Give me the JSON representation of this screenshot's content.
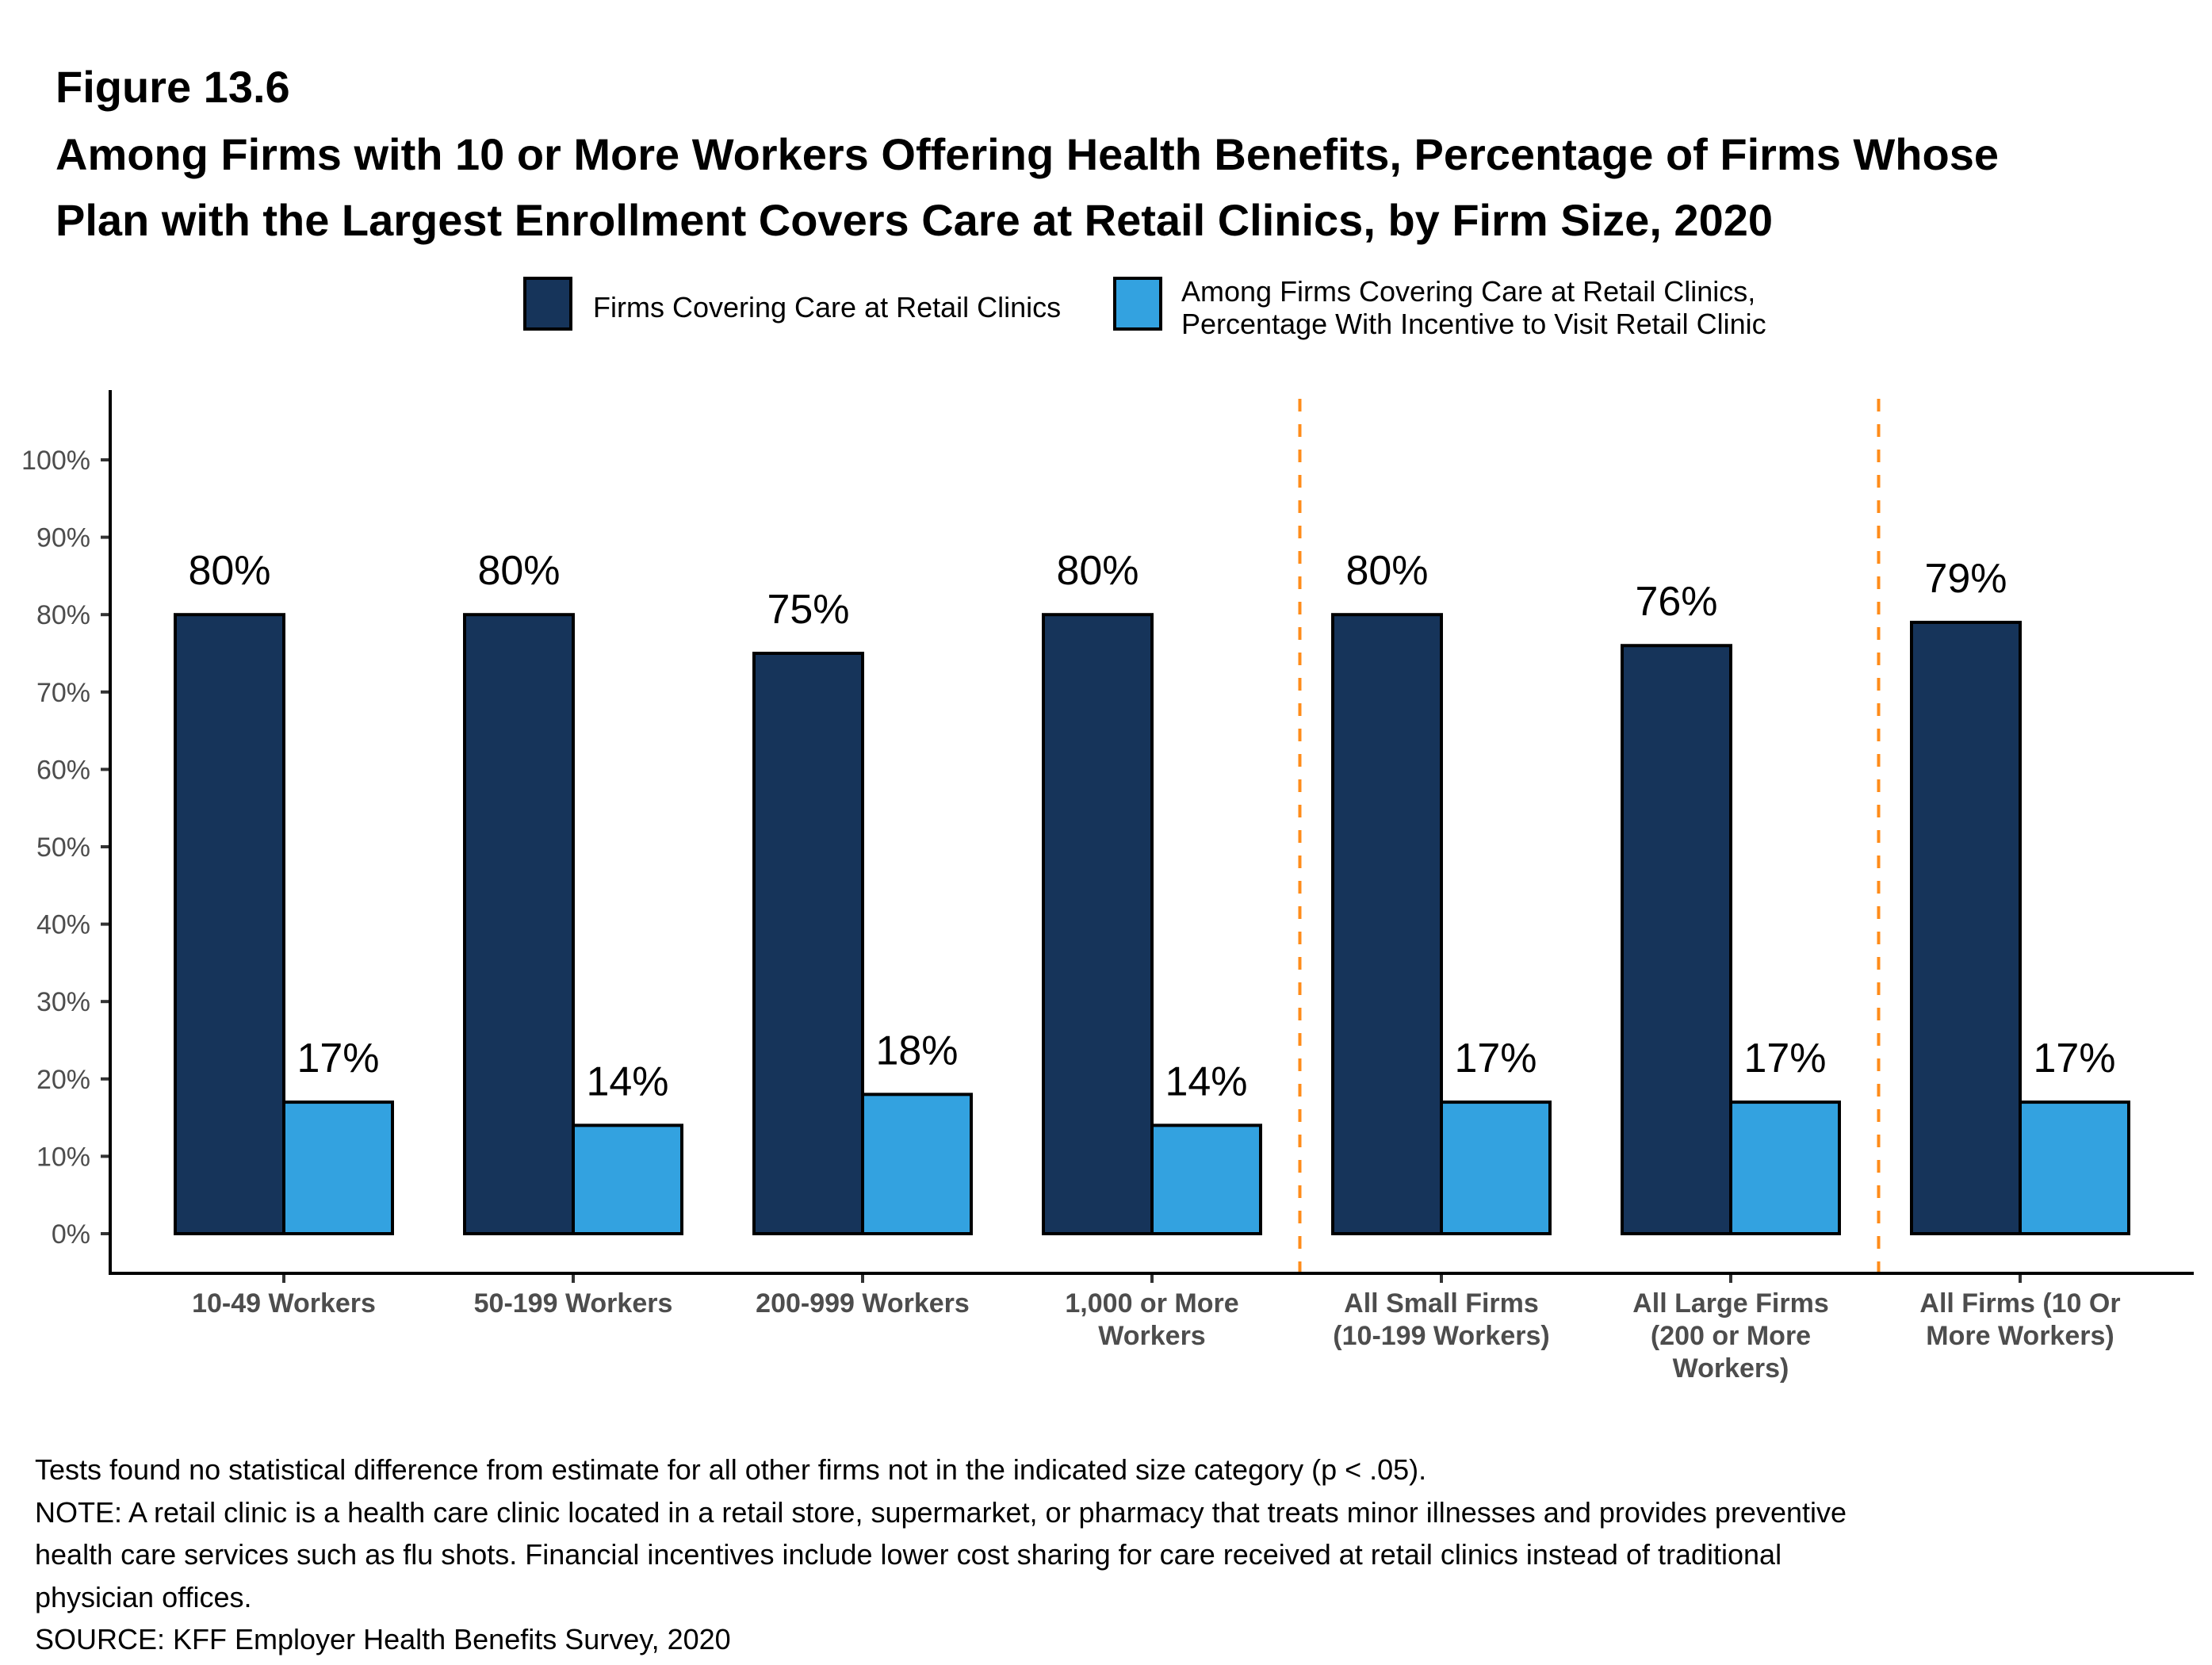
{
  "figure_label": "Figure 13.6",
  "title_lines": [
    "Among Firms with 10 or More Workers Offering Health Benefits, Percentage of Firms Whose",
    "Plan with the Largest Enrollment Covers Care at Retail Clinics, by Firm Size, 2020"
  ],
  "legend": {
    "items": [
      {
        "label_lines": [
          "Firms Covering Care at Retail Clinics"
        ],
        "color": "#16345a"
      },
      {
        "label_lines": [
          "Among Firms Covering Care at Retail Clinics,",
          "Percentage With Incentive to Visit Retail Clinic"
        ],
        "color": "#33a2e0"
      }
    ]
  },
  "colors": {
    "series_dark": "#16345a",
    "series_light": "#33a2e0",
    "divider": "#ff8c1a",
    "axis_text": "#4d4d4d"
  },
  "chart_data": {
    "type": "bar",
    "title": "Among Firms with 10 or More Workers Offering Health Benefits, Percentage of Firms Whose Plan with the Largest Enrollment Covers Care at Retail Clinics, by Firm Size, 2020",
    "xlabel": "",
    "ylabel": "",
    "ylim": [
      0,
      100
    ],
    "yticks": [
      0,
      10,
      20,
      30,
      40,
      50,
      60,
      70,
      80,
      90,
      100
    ],
    "ytick_labels": [
      "0%",
      "10%",
      "20%",
      "30%",
      "40%",
      "50%",
      "60%",
      "70%",
      "80%",
      "90%",
      "100%"
    ],
    "grid": false,
    "legend_position": "top",
    "categories": [
      [
        "10-49 Workers"
      ],
      [
        "50-199 Workers"
      ],
      [
        "200-999 Workers"
      ],
      [
        "1,000 or More",
        "Workers"
      ],
      [
        "All Small Firms",
        "(10-199 Workers)"
      ],
      [
        "All Large Firms",
        "(200 or More",
        "Workers)"
      ],
      [
        "All Firms (10 Or",
        "More Workers)"
      ]
    ],
    "series": [
      {
        "name": "Firms Covering Care at Retail Clinics",
        "values": [
          80,
          80,
          75,
          80,
          80,
          76,
          79
        ],
        "labels": [
          "80%",
          "80%",
          "75%",
          "80%",
          "80%",
          "76%",
          "79%"
        ]
      },
      {
        "name": "Among Firms Covering Care at Retail Clinics, Percentage With Incentive to Visit Retail Clinic",
        "values": [
          17,
          14,
          18,
          14,
          17,
          17,
          17
        ],
        "labels": [
          "17%",
          "14%",
          "18%",
          "14%",
          "17%",
          "17%",
          "17%"
        ]
      }
    ],
    "dividers_after_category_index": [
      3,
      5
    ]
  },
  "footnotes": [
    "Tests found no statistical difference from estimate for all other firms not in the indicated size category (p < .05).",
    "NOTE: A retail clinic is a health care clinic located in a retail store, supermarket, or pharmacy that treats minor illnesses and provides preventive",
    "health care services such as flu shots. Financial incentives include lower cost sharing for care received at retail clinics instead of traditional",
    "physician offices.",
    "SOURCE: KFF Employer Health Benefits Survey, 2020"
  ]
}
